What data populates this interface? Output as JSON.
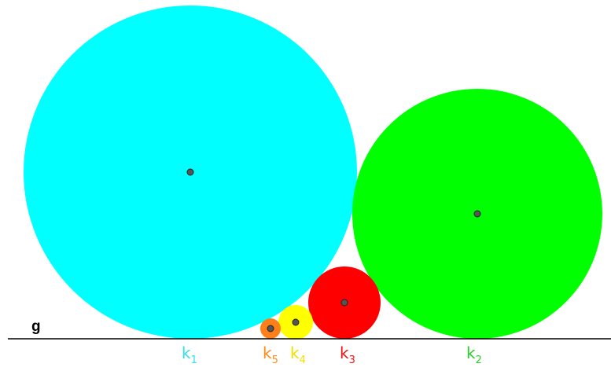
{
  "figure": {
    "line": {
      "name": "g",
      "color": "#000000"
    },
    "circles": [
      {
        "id": "k1",
        "label_main": "k",
        "label_sub": "1",
        "color": "#00FFFF",
        "label_color": "#33E0F0"
      },
      {
        "id": "k2",
        "label_main": "k",
        "label_sub": "2",
        "color": "#00FF00",
        "label_color": "#2ECC2E"
      },
      {
        "id": "k3",
        "label_main": "k",
        "label_sub": "3",
        "color": "#FF0000",
        "label_color": "#E81818"
      },
      {
        "id": "k4",
        "label_main": "k",
        "label_sub": "4",
        "color": "#FFFF00",
        "label_color": "#F2E000"
      },
      {
        "id": "k5",
        "label_main": "k",
        "label_sub": "5",
        "color": "#FF7F1A",
        "label_color": "#FF8C1A"
      }
    ],
    "center_point_color": "#555555"
  }
}
